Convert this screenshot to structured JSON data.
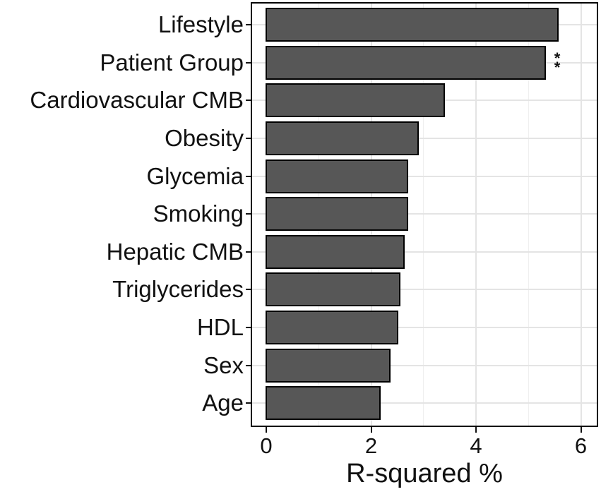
{
  "chart_data": {
    "type": "bar",
    "orientation": "horizontal",
    "title": "",
    "xlabel": "R-squared %",
    "ylabel": "",
    "categories": [
      "Lifestyle",
      "Patient Group",
      "Cardiovascular CMB",
      "Obesity",
      "Glycemia",
      "Smoking",
      "Hepatic CMB",
      "Triglycerides",
      "HDL",
      "Sex",
      "Age"
    ],
    "values": [
      5.56,
      5.32,
      3.4,
      2.9,
      2.7,
      2.69,
      2.62,
      2.54,
      2.5,
      2.36,
      2.17
    ],
    "annotations": [
      {
        "category": "Patient Group",
        "label": "**"
      }
    ],
    "xlim": [
      -0.27,
      6.3
    ],
    "x_major_ticks": [
      0,
      2,
      4,
      6
    ],
    "x_tick_labels": [
      "0",
      "2",
      "4",
      "6"
    ],
    "x_minor_gridlines": [
      1,
      3,
      5
    ],
    "grid": "on",
    "legend": "none",
    "colors": {
      "bar_fill": "#575757",
      "bar_border": "#000000",
      "panel_border": "#000000",
      "grid_major": "#e4e4e4",
      "grid_minor": "#efefef",
      "text": "#111111",
      "background": "#ffffff"
    }
  }
}
